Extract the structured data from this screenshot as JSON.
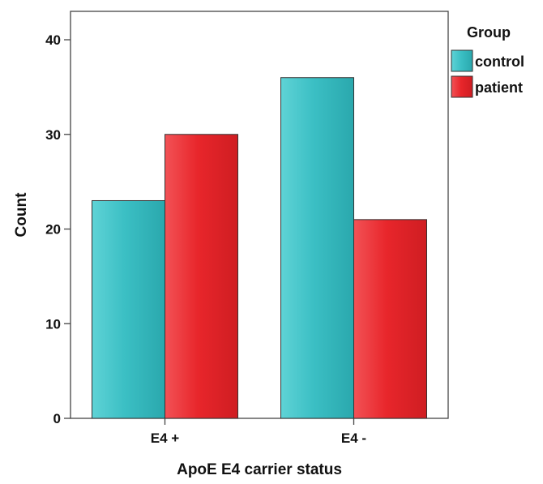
{
  "chart_data": {
    "type": "bar",
    "title": "",
    "xlabel": "ApoE E4 carrier status",
    "ylabel": "Count",
    "categories": [
      "E4 +",
      "E4 -"
    ],
    "series": [
      {
        "name": "control",
        "values": [
          23,
          36
        ],
        "color": "#3bbfc4"
      },
      {
        "name": "patient",
        "values": [
          30,
          21
        ],
        "color": "#e8262b"
      }
    ],
    "ylim": [
      0,
      43
    ],
    "yticks": [
      0,
      10,
      20,
      30,
      40
    ],
    "grid": false,
    "legend": {
      "title": "Group",
      "placement": "right"
    }
  }
}
